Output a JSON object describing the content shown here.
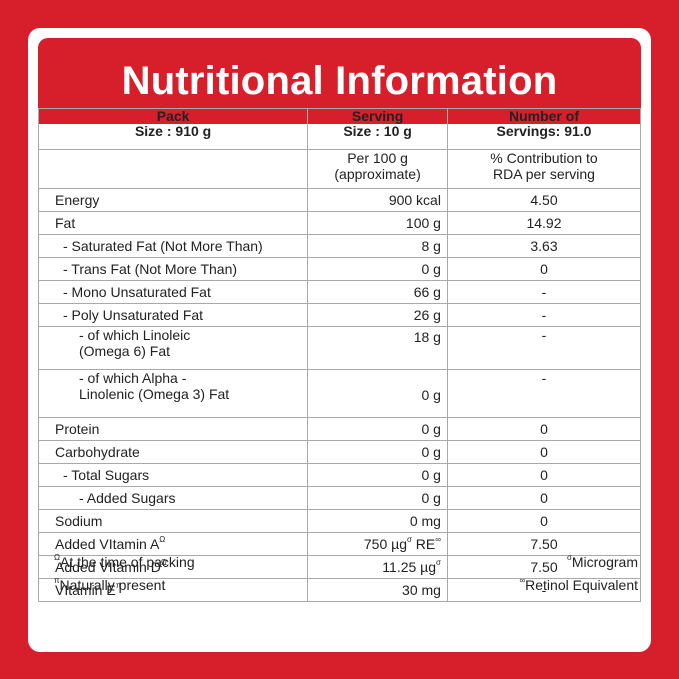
{
  "title": "Nutritional Information",
  "header": {
    "pack": [
      "Pack",
      "Size : 910 g"
    ],
    "serving": [
      "Serving",
      "Size  : 10 g"
    ],
    "servings": [
      "Number of",
      "Servings:  91.0"
    ]
  },
  "subheader": {
    "col2": [
      "Per 100 g",
      "(approximate)"
    ],
    "col3": [
      "% Contribution to",
      "RDA per serving"
    ]
  },
  "rows": [
    {
      "name": [
        "Energy"
      ],
      "value": "900 kcal",
      "rda": "4.50"
    },
    {
      "name": [
        "Fat"
      ],
      "value": "100 g",
      "rda": "14.92"
    },
    {
      "name": [
        "- Saturated Fat (Not More Than)"
      ],
      "value": "8 g",
      "rda": "3.63"
    },
    {
      "name": [
        "- Trans Fat (Not More Than)"
      ],
      "value": "0 g",
      "rda": "0"
    },
    {
      "name": [
        "- Mono Unsaturated Fat"
      ],
      "value": "66 g",
      "rda": "-"
    },
    {
      "name": [
        "- Poly Unsaturated Fat"
      ],
      "value": "26 g",
      "rda": "-"
    },
    {
      "name": [
        "- of which Linoleic",
        "(Omega 6) Fat"
      ],
      "value": "18 g",
      "rda": "-"
    },
    {
      "name": [
        "- of which Alpha -",
        "Linolenic (Omega 3) Fat"
      ],
      "value": "0 g",
      "rda": "-"
    },
    {
      "name": [
        "Protein"
      ],
      "value": "0 g",
      "rda": "0"
    },
    {
      "name": [
        "Carbohydrate"
      ],
      "value": "0 g",
      "rda": "0"
    },
    {
      "name": [
        "- Total Sugars"
      ],
      "value": "0 g",
      "rda": "0"
    },
    {
      "name": [
        "- Added Sugars"
      ],
      "value": "0 g",
      "rda": "0"
    },
    {
      "name": [
        "Sodium"
      ],
      "value": "0 mg",
      "rda": "0"
    },
    {
      "name": [
        "Added VItamin A"
      ],
      "sup": "Ω",
      "value": "750 µg",
      "value_sup": "σ",
      "value_suffix": " RE",
      "value_suffix_sup": "∞",
      "rda": "7.50"
    },
    {
      "name": [
        "Added VItamin D"
      ],
      "sup": "Ω",
      "value": "11.25 µg",
      "value_sup": "σ",
      "rda": "7.50"
    },
    {
      "name": [
        "VItamin E"
      ],
      "sup": "π",
      "value": "30 mg",
      "rda": "-"
    }
  ],
  "footnotes": {
    "left": [
      {
        "mark": "Ω",
        "text": "At the time of packing"
      },
      {
        "mark": "π",
        "text": "Naturally present"
      }
    ],
    "right": [
      {
        "mark": "σ",
        "text": "Microgram"
      },
      {
        "mark": "∞",
        "text": "Retinol Equivalent"
      }
    ]
  },
  "colors": {
    "brand_red": "#d71f2c",
    "grid": "#a9a9a9"
  }
}
